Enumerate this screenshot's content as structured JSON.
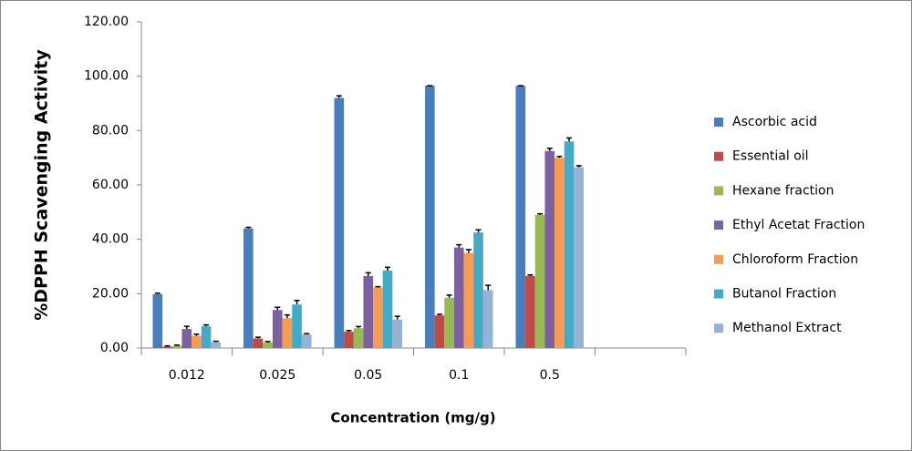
{
  "chart_data": {
    "type": "bar",
    "y_label": "%DPPH Scavenging Activity",
    "x_label": "Concentration  (mg/g)",
    "categories": [
      "0.012",
      "0.025",
      "0.05",
      "0.1",
      "0.5",
      null
    ],
    "ylim": [
      0,
      120
    ],
    "yticks": [
      {
        "value": 0,
        "label": "0.00"
      },
      {
        "value": 20,
        "label": "20.00"
      },
      {
        "value": 40,
        "label": "40.00"
      },
      {
        "value": 60,
        "label": "60.00"
      },
      {
        "value": 80,
        "label": "80.00"
      },
      {
        "value": 100,
        "label": "100.00"
      },
      {
        "value": 120,
        "label": "120.00"
      }
    ],
    "grid": false,
    "legend": "right",
    "series": [
      {
        "name": "Ascorbic acid",
        "color": "#4a7ebb",
        "values": [
          19.8,
          44,
          92,
          96.5,
          96.5,
          null
        ],
        "errors": [
          0.4,
          0.4,
          0.8,
          0,
          0,
          null
        ]
      },
      {
        "name": "Essential oil",
        "color": "#be4b48",
        "values": [
          0.5,
          3.5,
          6,
          12,
          26.5,
          null
        ],
        "errors": [
          0.3,
          0.5,
          0.4,
          0.4,
          0.4,
          null
        ]
      },
      {
        "name": "Hexane fraction",
        "color": "#98b954",
        "values": [
          0.8,
          2,
          7.3,
          18.5,
          49,
          null
        ],
        "errors": [
          0.3,
          0.4,
          0.6,
          1,
          0.4,
          null
        ]
      },
      {
        "name": "Ethyl Acetat Fraction",
        "color": "#7d60a0",
        "values": [
          7,
          14,
          26.5,
          37,
          72.5,
          null
        ],
        "errors": [
          1,
          1,
          1.2,
          1,
          1,
          null
        ]
      },
      {
        "name": "Chloroform Fraction",
        "color": "#f59d56",
        "values": [
          4.5,
          11,
          22.3,
          35,
          70,
          null
        ],
        "errors": [
          0.6,
          1.2,
          0.3,
          1.2,
          0.5,
          null
        ]
      },
      {
        "name": "Butanol Fraction",
        "color": "#46aac5",
        "values": [
          8,
          16,
          28.5,
          42.5,
          76,
          null
        ],
        "errors": [
          0.5,
          1.5,
          1.2,
          1,
          1.3,
          null
        ]
      },
      {
        "name": "Methanol Extract",
        "color": "#95b3d7",
        "values": [
          2.2,
          5,
          10.5,
          21.3,
          66.5,
          null
        ],
        "errors": [
          0.3,
          0.3,
          1.2,
          1.8,
          0.6,
          null
        ]
      }
    ]
  }
}
